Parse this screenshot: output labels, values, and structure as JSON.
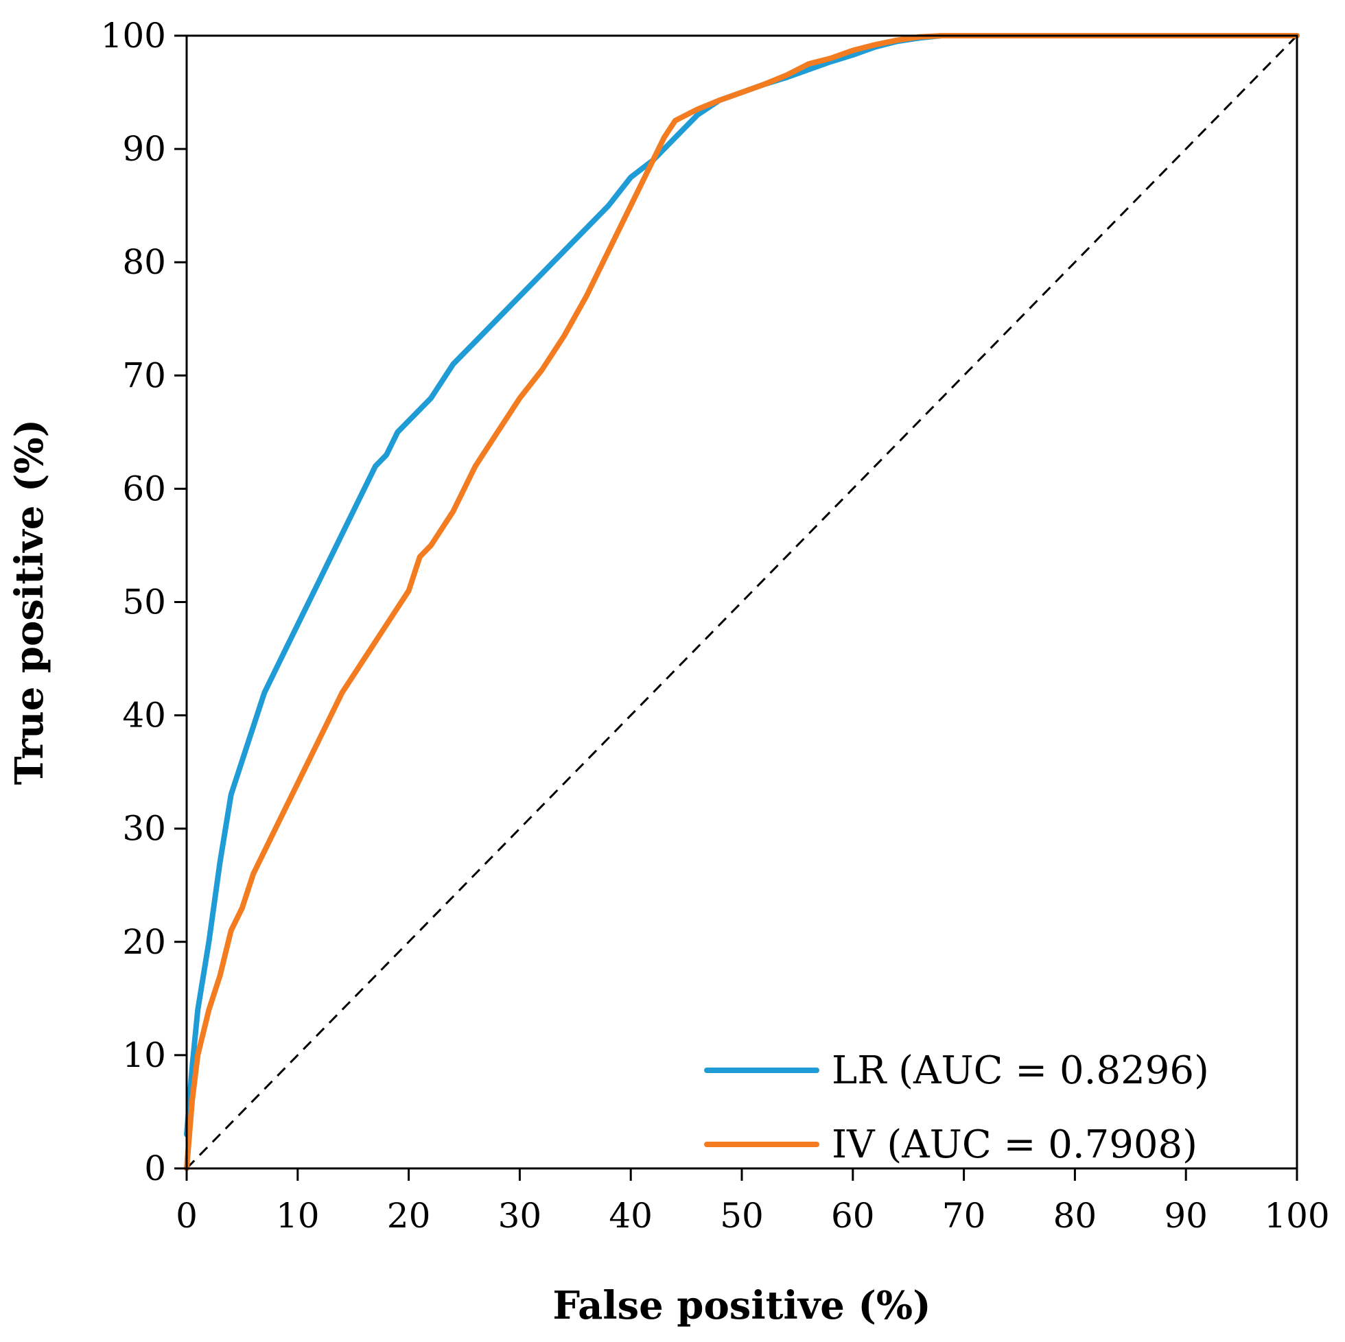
{
  "chart_data": {
    "type": "line",
    "title": "",
    "xlabel": "False positive (%)",
    "ylabel": "True positive (%)",
    "xlim": [
      0,
      100
    ],
    "ylim": [
      0,
      100
    ],
    "xticks": [
      "0",
      "10",
      "20",
      "30",
      "40",
      "50",
      "60",
      "70",
      "80",
      "90",
      "100"
    ],
    "yticks": [
      "0",
      "10",
      "20",
      "30",
      "40",
      "50",
      "60",
      "70",
      "80",
      "90",
      "100"
    ],
    "legend_position": "bottom-right",
    "reference_line": {
      "name": "random-classifier",
      "style": "dashed",
      "color": "#000000",
      "x": [
        0,
        100
      ],
      "y": [
        0,
        100
      ]
    },
    "series": [
      {
        "name": "LR (AUC = 0.8296)",
        "color": "#1f9bd6",
        "x": [
          0,
          0.5,
          1,
          2,
          3,
          4,
          5,
          6,
          7,
          8,
          9,
          10,
          11,
          12,
          13,
          14,
          15,
          16,
          17,
          18,
          19,
          20,
          22,
          24,
          26,
          28,
          30,
          32,
          34,
          36,
          38,
          40,
          42,
          44,
          46,
          48,
          50,
          52,
          54,
          56,
          58,
          60,
          62,
          64,
          66,
          68,
          70,
          80,
          90,
          100
        ],
        "y": [
          3,
          9,
          14,
          20,
          27,
          33,
          36,
          39,
          42,
          44,
          46,
          48,
          50,
          52,
          54,
          56,
          58,
          60,
          62,
          63,
          65,
          66,
          68,
          71,
          73,
          75,
          77,
          79,
          81,
          83,
          85,
          87.5,
          89,
          91,
          93,
          94.3,
          95,
          95.7,
          96.3,
          97,
          97.7,
          98.3,
          99,
          99.5,
          99.8,
          100,
          100,
          100,
          100,
          100
        ]
      },
      {
        "name": "IV (AUC = 0.7908)",
        "color": "#f47c20",
        "x": [
          0,
          0.5,
          1,
          2,
          3,
          4,
          5,
          6,
          7,
          8,
          10,
          12,
          14,
          16,
          18,
          20,
          21,
          22,
          24,
          26,
          28,
          30,
          32,
          34,
          36,
          38,
          40,
          41,
          42,
          43,
          44,
          46,
          48,
          50,
          52,
          54,
          56,
          58,
          60,
          62,
          64,
          66,
          68,
          70,
          80,
          90,
          100
        ],
        "y": [
          0,
          6,
          10,
          14,
          17,
          21,
          23,
          26,
          28,
          30,
          34,
          38,
          42,
          45,
          48,
          51,
          54,
          55,
          58,
          62,
          65,
          68,
          70.5,
          73.5,
          77,
          81,
          85,
          87,
          89,
          91,
          92.5,
          93.5,
          94.3,
          95,
          95.7,
          96.5,
          97.5,
          98,
          98.7,
          99.2,
          99.6,
          99.9,
          100,
          100,
          100,
          100,
          100
        ]
      }
    ]
  }
}
